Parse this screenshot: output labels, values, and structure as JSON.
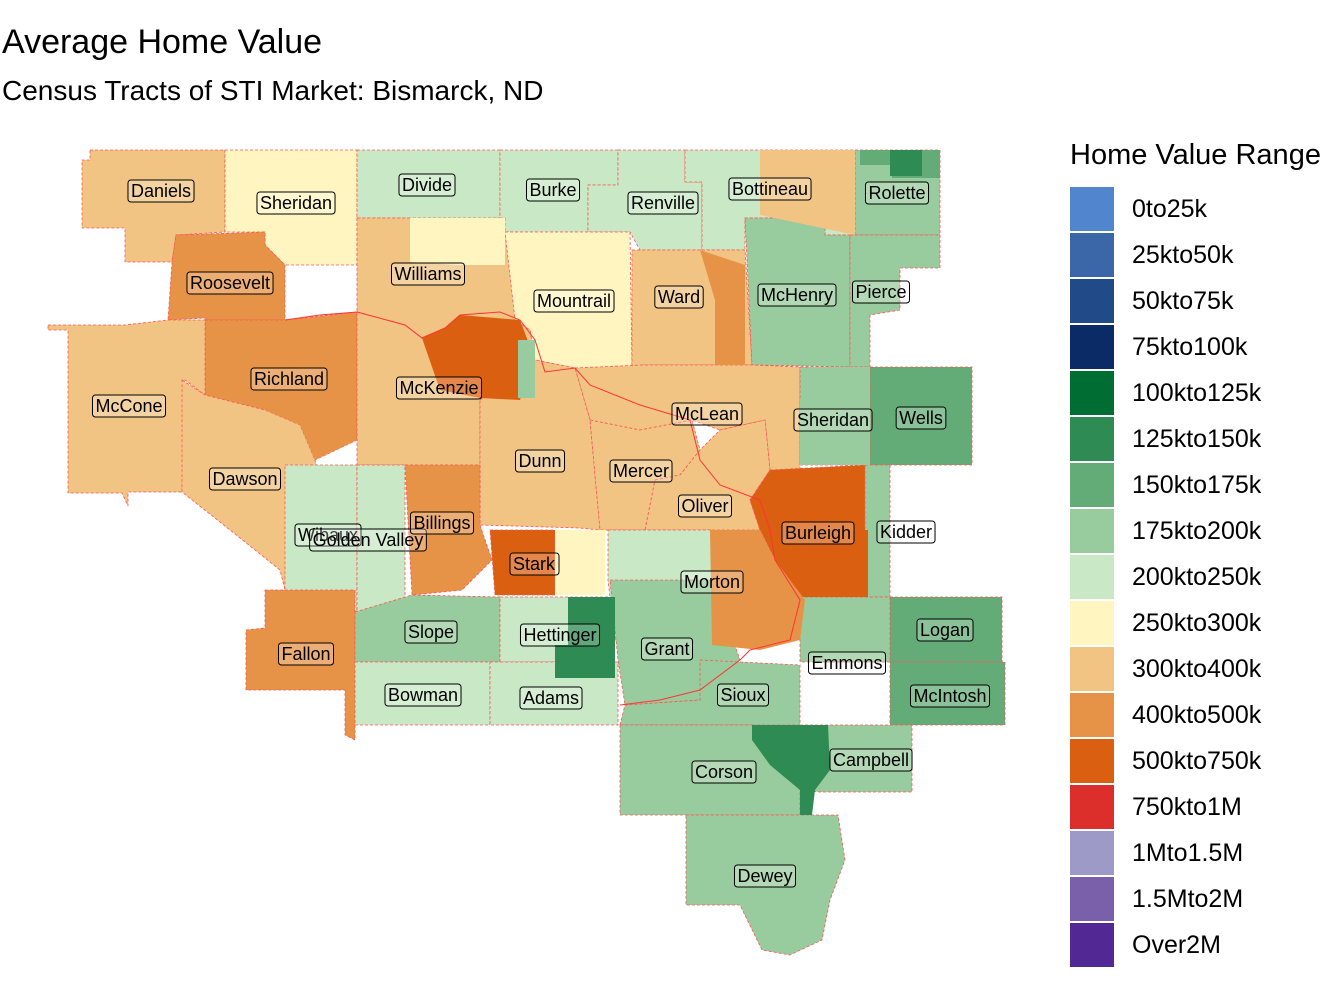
{
  "title": "Average Home Value",
  "subtitle": "Census Tracts of STI Market: Bismarck, ND",
  "legend": {
    "title": "Home Value Range",
    "items": [
      {
        "label": "0to25k",
        "color": "#5186CF"
      },
      {
        "label": "25kto50k",
        "color": "#3B66A8"
      },
      {
        "label": "50kto75k",
        "color": "#214B88"
      },
      {
        "label": "75kto100k",
        "color": "#0A2B66"
      },
      {
        "label": "100kto125k",
        "color": "#006E33"
      },
      {
        "label": "125kto150k",
        "color": "#2E8B53"
      },
      {
        "label": "150kto175k",
        "color": "#63AC77"
      },
      {
        "label": "175kto200k",
        "color": "#98CB9D"
      },
      {
        "label": "200kto250k",
        "color": "#C9E8C6"
      },
      {
        "label": "250kto300k",
        "color": "#FEF5C0"
      },
      {
        "label": "300kto400k",
        "color": "#F1C483"
      },
      {
        "label": "400kto500k",
        "color": "#E69347"
      },
      {
        "label": "500kto750k",
        "color": "#DA5F10"
      },
      {
        "label": "750kto1M",
        "color": "#DC2E2A"
      },
      {
        "label": "1Mto1.5M",
        "color": "#9D9AC8"
      },
      {
        "label": "1.5Mto2M",
        "color": "#7A5FAB"
      },
      {
        "label": "Over2M",
        "color": "#512894"
      }
    ]
  },
  "counties": [
    {
      "name": "Daniels",
      "range": "300kto400k"
    },
    {
      "name": "Sheridan",
      "range": "250kto300k"
    },
    {
      "name": "Divide",
      "range": "200kto250k"
    },
    {
      "name": "Burke",
      "range": "200kto250k"
    },
    {
      "name": "Renville",
      "range": "200kto250k"
    },
    {
      "name": "Bottineau",
      "range": "200kto250k"
    },
    {
      "name": "Rolette",
      "range": "175kto200k"
    },
    {
      "name": "Roosevelt",
      "range": "400kto500k"
    },
    {
      "name": "Williams",
      "range": "300kto400k"
    },
    {
      "name": "Mountrail",
      "range": "250kto300k"
    },
    {
      "name": "Ward",
      "range": "300kto400k"
    },
    {
      "name": "McHenry",
      "range": "175kto200k"
    },
    {
      "name": "Pierce",
      "range": "175kto200k"
    },
    {
      "name": "Richland",
      "range": "400kto500k"
    },
    {
      "name": "McKenzie",
      "range": "300kto400k"
    },
    {
      "name": "McCone",
      "range": "300kto400k"
    },
    {
      "name": "McLean",
      "range": "300kto400k"
    },
    {
      "name": "Sheridan",
      "range": "175kto200k"
    },
    {
      "name": "Wells",
      "range": "150kto175k"
    },
    {
      "name": "Dawson",
      "range": "300kto400k"
    },
    {
      "name": "Dunn",
      "range": "300kto400k"
    },
    {
      "name": "Mercer",
      "range": "300kto400k"
    },
    {
      "name": "Oliver",
      "range": "300kto400k"
    },
    {
      "name": "Wibaux",
      "range": "200kto250k"
    },
    {
      "name": "Golden Valley",
      "range": "200kto250k"
    },
    {
      "name": "Billings",
      "range": "400kto500k"
    },
    {
      "name": "Burleigh",
      "range": "500kto750k"
    },
    {
      "name": "Kidder",
      "range": "175kto200k"
    },
    {
      "name": "Stark",
      "range": "500kto750k"
    },
    {
      "name": "Morton",
      "range": "200kto250k"
    },
    {
      "name": "Fallon",
      "range": "400kto500k"
    },
    {
      "name": "Slope",
      "range": "175kto200k"
    },
    {
      "name": "Hettinger",
      "range": "200kto250k"
    },
    {
      "name": "Grant",
      "range": "175kto200k"
    },
    {
      "name": "Logan",
      "range": "150kto175k"
    },
    {
      "name": "Emmons",
      "range": "175kto200k"
    },
    {
      "name": "Bowman",
      "range": "200kto250k"
    },
    {
      "name": "Adams",
      "range": "200kto250k"
    },
    {
      "name": "Sioux",
      "range": "175kto200k"
    },
    {
      "name": "McIntosh",
      "range": "150kto175k"
    },
    {
      "name": "Corson",
      "range": "175kto200k"
    },
    {
      "name": "Campbell",
      "range": "175kto200k"
    },
    {
      "name": "Dewey",
      "range": "175kto200k"
    }
  ]
}
